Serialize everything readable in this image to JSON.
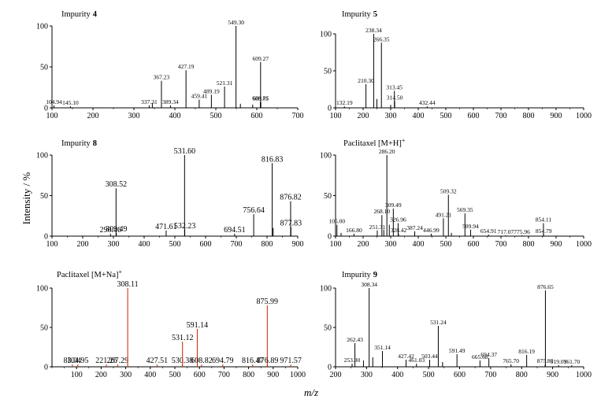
{
  "figure": {
    "ylabel": "Intensity / %",
    "xlabel": "m/z"
  },
  "chart_data": [
    {
      "type": "bar",
      "title": "Impurity 4",
      "title_name": "Impurity",
      "title_tag": "4",
      "xlim": [
        100,
        700
      ],
      "ylim": [
        0,
        100
      ],
      "x_ticks": [
        100,
        200,
        300,
        400,
        500,
        600,
        700
      ],
      "y_ticks": [
        0,
        50,
        100
      ],
      "color": "#000000",
      "label_size": "small",
      "peaks": [
        {
          "x": 104.94,
          "y": 3,
          "label": "104.94"
        },
        {
          "x": 145.1,
          "y": 2,
          "label": "145.10"
        },
        {
          "x": 337.31,
          "y": 3,
          "label": "337.31"
        },
        {
          "x": 345,
          "y": 6
        },
        {
          "x": 367.23,
          "y": 33,
          "label": "367.23"
        },
        {
          "x": 389.34,
          "y": 3,
          "label": "389.34"
        },
        {
          "x": 427.19,
          "y": 46,
          "label": "427.19"
        },
        {
          "x": 459.41,
          "y": 10,
          "label": "459.41"
        },
        {
          "x": 489.19,
          "y": 16,
          "label": "489.19"
        },
        {
          "x": 521.31,
          "y": 26,
          "label": "521.31"
        },
        {
          "x": 549.3,
          "y": 100,
          "label": "549.30"
        },
        {
          "x": 560,
          "y": 5
        },
        {
          "x": 590,
          "y": 4
        },
        {
          "x": 608.71,
          "y": 7,
          "label": "608.71"
        },
        {
          "x": 609.27,
          "y": 56,
          "label": "609.27"
        },
        {
          "x": 609.85,
          "y": 7,
          "label": "609.85"
        }
      ]
    },
    {
      "type": "bar",
      "title": "Impurity 5",
      "title_name": "Impurity",
      "title_tag": "5",
      "xlim": [
        100,
        1000
      ],
      "ylim": [
        0,
        100
      ],
      "x_ticks": [
        100,
        200,
        300,
        400,
        500,
        600,
        700,
        800,
        900,
        1000
      ],
      "y_ticks": [
        0,
        50,
        100
      ],
      "color": "#000000",
      "label_size": "small",
      "peaks": [
        {
          "x": 132.19,
          "y": 2,
          "label": "132.19"
        },
        {
          "x": 210.3,
          "y": 32,
          "label": "210.30"
        },
        {
          "x": 238.34,
          "y": 100,
          "label": "238.34"
        },
        {
          "x": 250,
          "y": 12
        },
        {
          "x": 266.35,
          "y": 88,
          "label": "266.35"
        },
        {
          "x": 300,
          "y": 4
        },
        {
          "x": 313.45,
          "y": 23,
          "label": "313.45"
        },
        {
          "x": 314.5,
          "y": 9,
          "label": "314.50"
        },
        {
          "x": 432.44,
          "y": 2,
          "label": "432.44"
        }
      ]
    },
    {
      "type": "bar",
      "title": "Impurity 8",
      "title_name": "Impurity",
      "title_tag": "8",
      "xlim": [
        100,
        900
      ],
      "ylim": [
        0,
        100
      ],
      "x_ticks": [
        100,
        200,
        300,
        400,
        500,
        600,
        700,
        800,
        900
      ],
      "y_ticks": [
        0,
        50,
        100
      ],
      "color": "#000000",
      "label_size": "big",
      "peaks": [
        {
          "x": 290.46,
          "y": 3,
          "label": "290.46"
        },
        {
          "x": 308.52,
          "y": 59,
          "label": "308.52"
        },
        {
          "x": 309.49,
          "y": 4,
          "label": "309.49"
        },
        {
          "x": 471.61,
          "y": 7,
          "label": "471.61"
        },
        {
          "x": 531.6,
          "y": 100,
          "label": "531.60"
        },
        {
          "x": 532.23,
          "y": 8,
          "label": "532.23"
        },
        {
          "x": 694.51,
          "y": 3,
          "label": "694.51"
        },
        {
          "x": 756.64,
          "y": 27,
          "label": "756.64"
        },
        {
          "x": 816.83,
          "y": 90,
          "label": "816.83"
        },
        {
          "x": 820,
          "y": 10
        },
        {
          "x": 876.82,
          "y": 43,
          "label": "876.82"
        },
        {
          "x": 877.83,
          "y": 11,
          "label": "877.83"
        }
      ]
    },
    {
      "type": "bar",
      "title": "Paclitaxel [M+H]+",
      "title_name": "Paclitaxel [M+H]",
      "title_tag": "+",
      "xlim": [
        100,
        1000
      ],
      "ylim": [
        0,
        100
      ],
      "x_ticks": [
        100,
        200,
        300,
        400,
        500,
        600,
        700,
        800,
        900,
        1000
      ],
      "y_ticks": [
        0,
        50,
        100
      ],
      "color": "#000000",
      "label_size": "small",
      "peaks": [
        {
          "x": 105.0,
          "y": 14,
          "label": "105.00"
        },
        {
          "x": 120,
          "y": 4
        },
        {
          "x": 166.8,
          "y": 3,
          "label": "166.80"
        },
        {
          "x": 251.31,
          "y": 7,
          "label": "251.31"
        },
        {
          "x": 268.1,
          "y": 26,
          "label": "268.10"
        },
        {
          "x": 275,
          "y": 8
        },
        {
          "x": 286.2,
          "y": 100,
          "label": "286.20"
        },
        {
          "x": 295,
          "y": 14
        },
        {
          "x": 309.49,
          "y": 34,
          "label": "309.49"
        },
        {
          "x": 326.96,
          "y": 16,
          "label": "326.96"
        },
        {
          "x": 328.42,
          "y": 3,
          "label": "328.42"
        },
        {
          "x": 387.24,
          "y": 6,
          "label": "387.24"
        },
        {
          "x": 446.99,
          "y": 3,
          "label": "446.99"
        },
        {
          "x": 491.21,
          "y": 22,
          "label": "491.21"
        },
        {
          "x": 509.32,
          "y": 51,
          "label": "509.32"
        },
        {
          "x": 520,
          "y": 4
        },
        {
          "x": 569.35,
          "y": 28,
          "label": "569.35"
        },
        {
          "x": 589.94,
          "y": 8,
          "label": "589.94"
        },
        {
          "x": 654.91,
          "y": 2,
          "label": "654.91"
        },
        {
          "x": 717.07,
          "y": 1,
          "label": "717.07"
        },
        {
          "x": 775.96,
          "y": 1,
          "label": "775.96"
        },
        {
          "x": 854.11,
          "y": 16,
          "label": "854.11"
        },
        {
          "x": 854.79,
          "y": 2,
          "label": "854.79"
        }
      ]
    },
    {
      "type": "bar",
      "title": "Paclitaxel [M+Na]+",
      "title_name": "Paclitaxel [M+Na]",
      "title_tag": "+",
      "xlim": [
        0,
        1000
      ],
      "ylim": [
        0,
        100
      ],
      "x_ticks": [
        100,
        200,
        300,
        400,
        500,
        600,
        700,
        800,
        900,
        1000
      ],
      "y_ticks": [
        0,
        50,
        100
      ],
      "color": "#cc2200",
      "label_size": "big",
      "peaks": [
        {
          "x": 83.04,
          "y": 3,
          "label": "83.04"
        },
        {
          "x": 104.95,
          "y": 3,
          "label": "104.95"
        },
        {
          "x": 221.26,
          "y": 3,
          "label": "221.26"
        },
        {
          "x": 267.29,
          "y": 3,
          "label": "267.29"
        },
        {
          "x": 308.11,
          "y": 100,
          "label": "308.11"
        },
        {
          "x": 427.51,
          "y": 3,
          "label": "427.51"
        },
        {
          "x": 530.38,
          "y": 3,
          "label": "530.38"
        },
        {
          "x": 531.12,
          "y": 32,
          "label": "531.12"
        },
        {
          "x": 591.14,
          "y": 48,
          "label": "591.14"
        },
        {
          "x": 608.82,
          "y": 3,
          "label": "608.82"
        },
        {
          "x": 694.79,
          "y": 3,
          "label": "694.79"
        },
        {
          "x": 816.47,
          "y": 3,
          "label": "816.47"
        },
        {
          "x": 875.99,
          "y": 78,
          "label": "875.99"
        },
        {
          "x": 876.89,
          "y": 3,
          "label": "876.89"
        },
        {
          "x": 971.57,
          "y": 3,
          "label": "971.57"
        }
      ]
    },
    {
      "type": "bar",
      "title": "Impurity 9",
      "title_name": "Impurity",
      "title_tag": "9",
      "xlim": [
        200,
        1000
      ],
      "ylim": [
        0,
        100
      ],
      "x_ticks": [
        200,
        300,
        400,
        500,
        600,
        700,
        800,
        900,
        1000
      ],
      "y_ticks": [
        0,
        50,
        100
      ],
      "color": "#000000",
      "label_size": "small",
      "peaks": [
        {
          "x": 253.3,
          "y": 4,
          "label": "253.30"
        },
        {
          "x": 262.43,
          "y": 30,
          "label": "262.43"
        },
        {
          "x": 290,
          "y": 8
        },
        {
          "x": 308.34,
          "y": 100,
          "label": "308.34"
        },
        {
          "x": 320,
          "y": 12
        },
        {
          "x": 351.14,
          "y": 20,
          "label": "351.14"
        },
        {
          "x": 427.42,
          "y": 9,
          "label": "427.42"
        },
        {
          "x": 461.03,
          "y": 4,
          "label": "461.03"
        },
        {
          "x": 503.44,
          "y": 9,
          "label": "503.44"
        },
        {
          "x": 531.24,
          "y": 52,
          "label": "531.24"
        },
        {
          "x": 545,
          "y": 6
        },
        {
          "x": 591.49,
          "y": 16,
          "label": "591.49"
        },
        {
          "x": 665.68,
          "y": 8,
          "label": "665.68"
        },
        {
          "x": 694.37,
          "y": 11,
          "label": "694.37"
        },
        {
          "x": 765.7,
          "y": 3,
          "label": "765.70"
        },
        {
          "x": 816.19,
          "y": 15,
          "label": "816.19"
        },
        {
          "x": 875.8,
          "y": 3,
          "label": "875.80"
        },
        {
          "x": 876.65,
          "y": 97,
          "label": "876.65"
        },
        {
          "x": 919.03,
          "y": 2,
          "label": "919.03"
        },
        {
          "x": 961.7,
          "y": 2,
          "label": "961.70"
        }
      ]
    }
  ]
}
